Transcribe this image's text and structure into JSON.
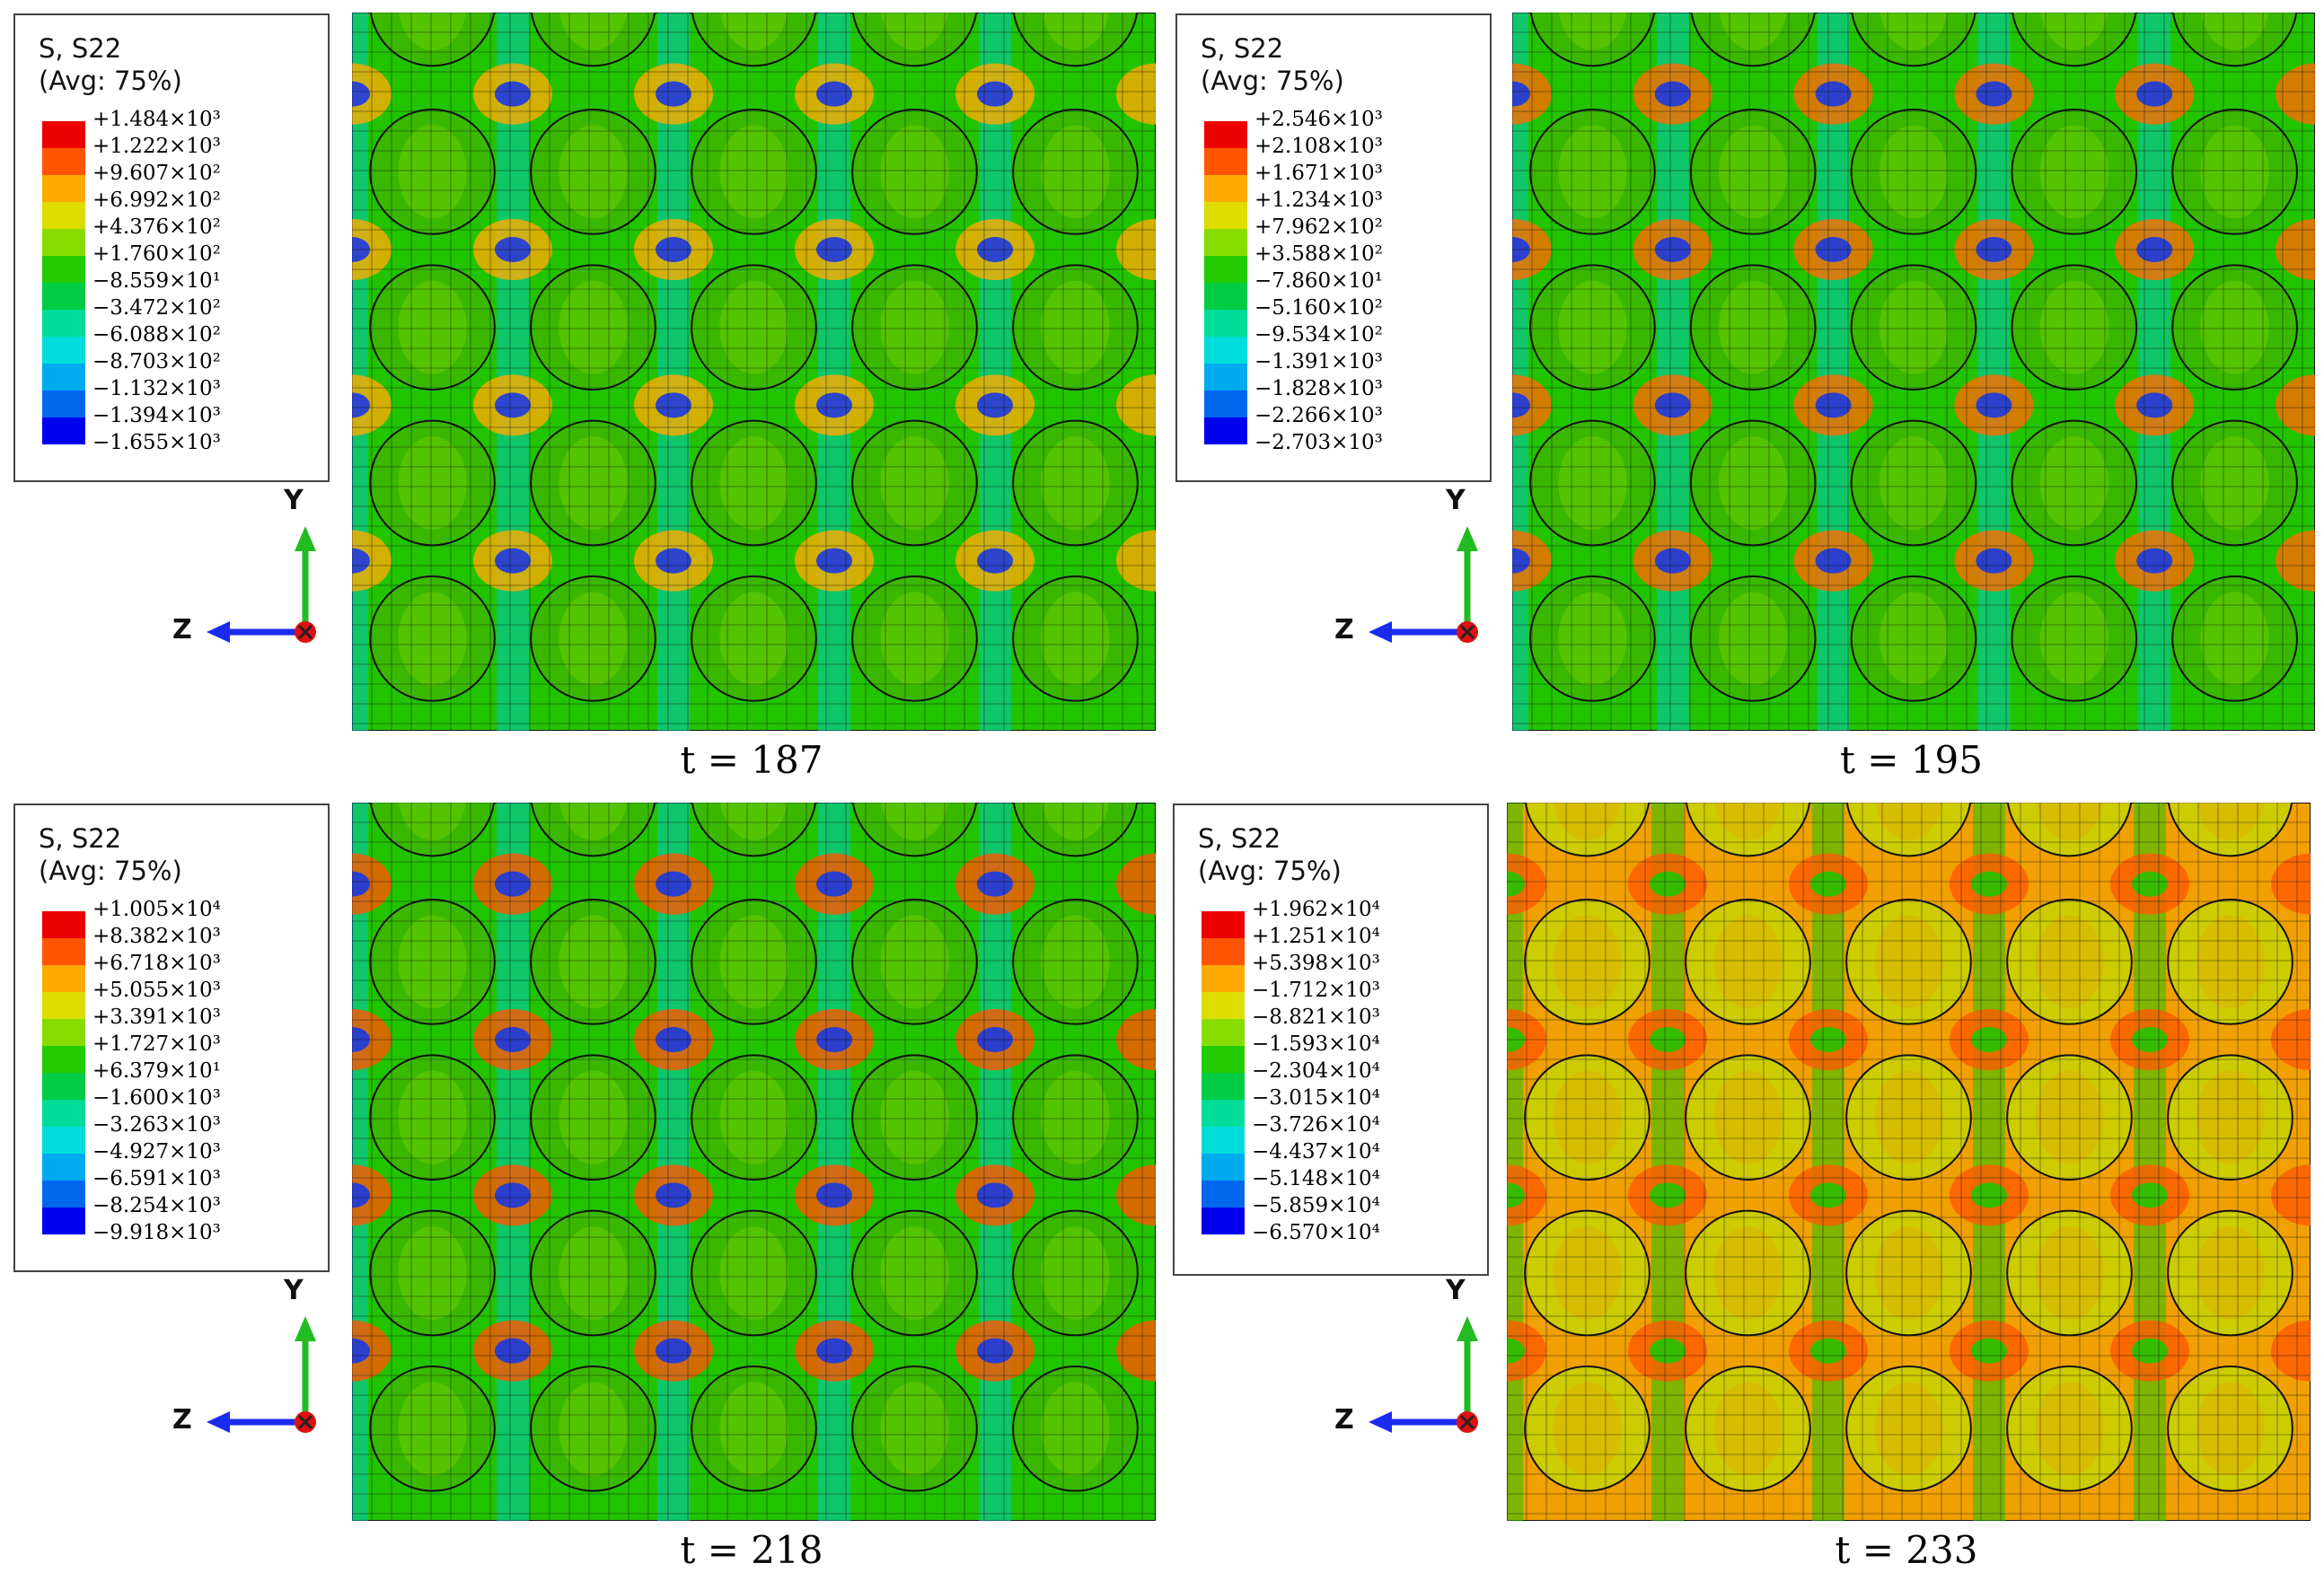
{
  "legend_title": "S, S22",
  "legend_subtitle": "(Avg: 75%)",
  "legend_colors": [
    "#ee0000",
    "#ff5500",
    "#ffaa00",
    "#dddd00",
    "#88dd00",
    "#22cc00",
    "#00cc44",
    "#00dd99",
    "#00dddd",
    "#00aaee",
    "#0066ee",
    "#0000ee"
  ],
  "axis_labels": {
    "y": "Y",
    "z": "Z"
  },
  "panels": [
    {
      "caption": "t = 187",
      "palette": {
        "bg": "#22c400",
        "vband": "#00c8c0",
        "node": "#1a3ae0",
        "hot": "#ffaa00",
        "sphere": "#3ab800",
        "sphere_inner": "#6acd00"
      },
      "levels": [
        "+1.484×10³",
        "+1.222×10³",
        "+9.607×10²",
        "+6.992×10²",
        "+4.376×10²",
        "+1.760×10²",
        "−8.559×10¹",
        "−3.472×10²",
        "−6.088×10²",
        "−8.703×10²",
        "−1.132×10³",
        "−1.394×10³",
        "−1.655×10³"
      ]
    },
    {
      "caption": "t = 195",
      "palette": {
        "bg": "#22c400",
        "vband": "#00c8c0",
        "node": "#1a3ae0",
        "hot": "#ff6a00",
        "sphere": "#3ab800",
        "sphere_inner": "#6acd00"
      },
      "levels": [
        "+2.546×10³",
        "+2.108×10³",
        "+1.671×10³",
        "+1.234×10³",
        "+7.962×10²",
        "+3.588×10²",
        "−7.860×10¹",
        "−5.160×10²",
        "−9.534×10²",
        "−1.391×10³",
        "−1.828×10³",
        "−2.266×10³",
        "−2.703×10³"
      ]
    },
    {
      "caption": "t = 218",
      "palette": {
        "bg": "#22c400",
        "vband": "#00c8c0",
        "node": "#1a3ae0",
        "hot": "#ff5500",
        "sphere": "#3ab800",
        "sphere_inner": "#6acd00"
      },
      "levels": [
        "+1.005×10⁴",
        "+8.382×10³",
        "+6.718×10³",
        "+5.055×10³",
        "+3.391×10³",
        "+1.727×10³",
        "+6.379×10¹",
        "−1.600×10³",
        "−3.263×10³",
        "−4.927×10³",
        "−6.591×10³",
        "−8.254×10³",
        "−9.918×10³"
      ]
    },
    {
      "caption": "t = 233",
      "palette": {
        "bg": "#f0a000",
        "vband": "#22c400",
        "node": "#22c400",
        "hot": "#ff5a00",
        "sphere": "#cccc00",
        "sphere_inner": "#e0b000"
      },
      "levels": [
        "+1.962×10⁴",
        "+1.251×10⁴",
        "+5.398×10³",
        "−1.712×10³",
        "−8.821×10³",
        "−1.593×10⁴",
        "−2.304×10⁴",
        "−3.015×10⁴",
        "−3.726×10⁴",
        "−4.437×10⁴",
        "−5.148×10⁴",
        "−5.859×10⁴",
        "−6.570×10⁴"
      ]
    }
  ]
}
